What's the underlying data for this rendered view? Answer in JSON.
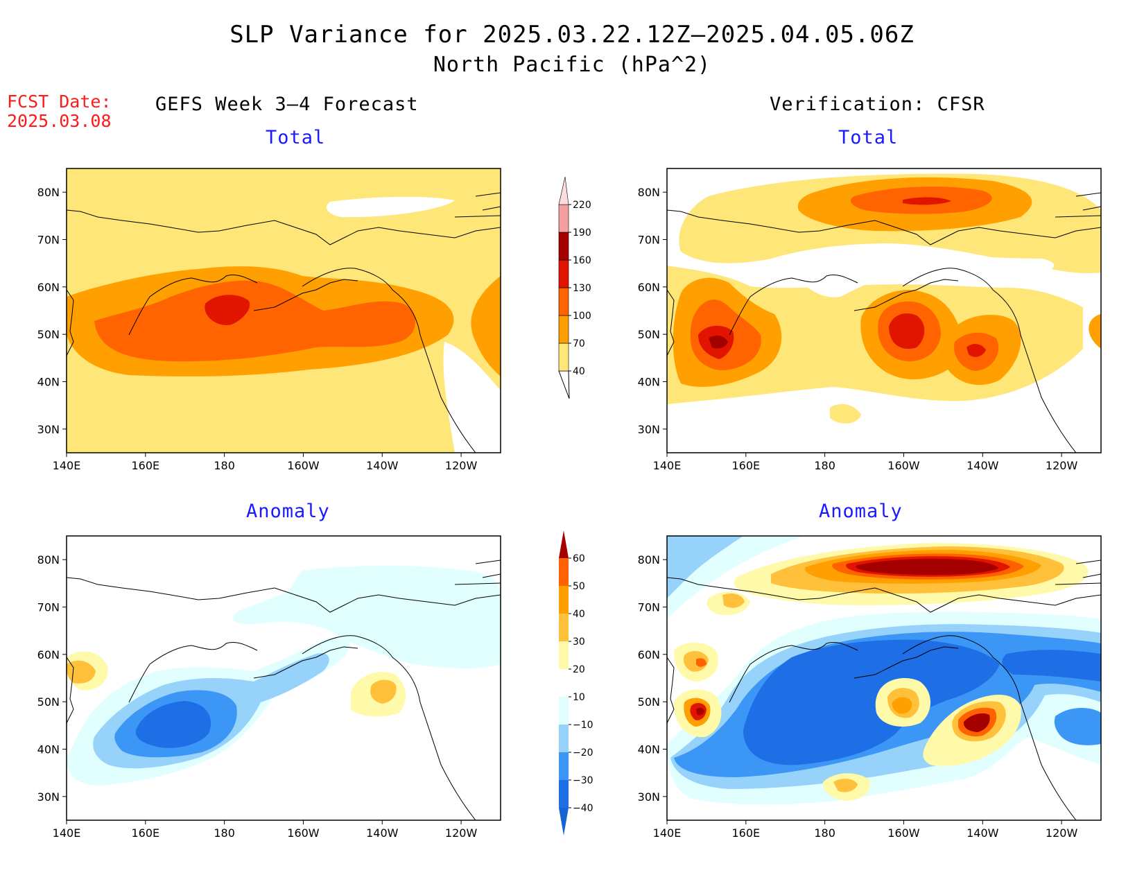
{
  "title": "SLP Variance for 2025.03.22.12Z–2025.04.05.06Z",
  "subtitle": "North Pacific (hPa^2)",
  "fcst_date": {
    "label": "FCST Date:",
    "value": "2025.03.08"
  },
  "columns": {
    "left": "GEFS Week 3–4 Forecast",
    "right": "Verification: CFSR"
  },
  "panel_titles": {
    "total": "Total",
    "anomaly": "Anomaly"
  },
  "axes": {
    "lon_labels": [
      "140E",
      "160E",
      "180",
      "160W",
      "140W",
      "120W"
    ],
    "lat_labels": [
      "30N",
      "40N",
      "50N",
      "60N",
      "70N",
      "80N"
    ],
    "lon_range": [
      140,
      250
    ],
    "lat_range": [
      25,
      85
    ]
  },
  "colorbars": {
    "total": {
      "labels": [
        "40",
        "70",
        "100",
        "130",
        "160",
        "190",
        "220"
      ],
      "colors": [
        "#ffe678",
        "#ffa000",
        "#ff6400",
        "#e11400",
        "#a50000",
        "#f4a0a0",
        "#ffdcdc"
      ]
    },
    "anomaly": {
      "labels": [
        "−40",
        "−30",
        "−20",
        "−10",
        "10",
        "20",
        "30",
        "40",
        "50",
        "60"
      ],
      "colors": [
        "#1464d2",
        "#1e6ee6",
        "#3c96f5",
        "#96d2fa",
        "#e1ffff",
        "#ffffff",
        "#fffaaa",
        "#ffc03c",
        "#ffa000",
        "#ff6000",
        "#e11400",
        "#a50000"
      ]
    }
  },
  "colors": {
    "title": "#000000",
    "fcst": "#ff1a1a",
    "panel_title": "#1a1aff"
  }
}
